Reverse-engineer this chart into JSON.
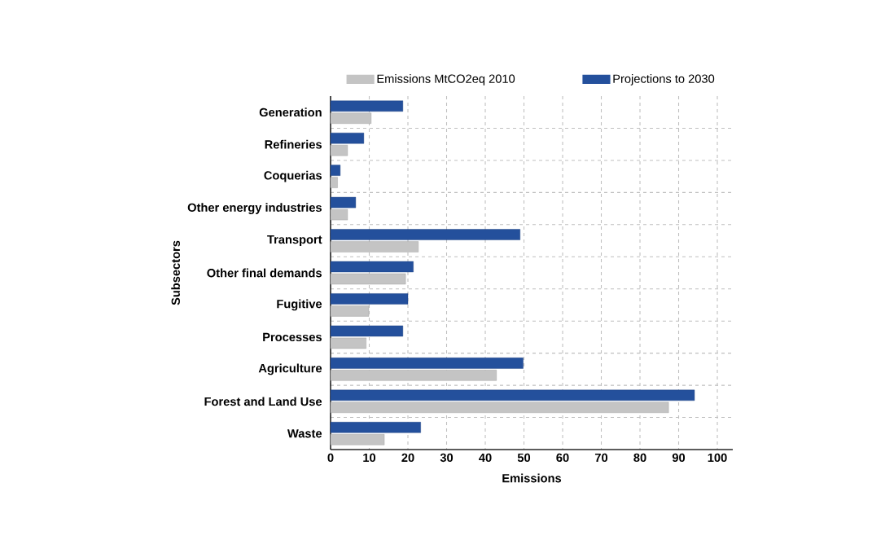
{
  "chart_data": {
    "type": "bar",
    "orientation": "horizontal",
    "xlabel": "Emissions",
    "ylabel": "Subsectors",
    "categories": [
      "Generation",
      "Refineries",
      "Coquerias",
      "Other energy industries",
      "Transport",
      "Other final demands",
      "Fugitive",
      "Processes",
      "Agriculture",
      "Forest and Land Use",
      "Waste"
    ],
    "series": [
      {
        "name": "Emissions MtCO2eq 2010",
        "color": "#c4c4c4",
        "values": [
          10.5,
          4.4,
          1.8,
          4.4,
          22.7,
          19.4,
          9.9,
          9.2,
          42.9,
          87.4,
          13.9
        ]
      },
      {
        "name": "Projections to 2030",
        "color": "#24509c",
        "values": [
          18.7,
          8.6,
          2.5,
          6.5,
          49,
          21.4,
          20,
          18.7,
          49.8,
          94.1,
          23.3
        ]
      }
    ],
    "xlim": [
      0,
      104
    ],
    "xticks": [
      0,
      10,
      20,
      30,
      40,
      50,
      60,
      70,
      80,
      90,
      100
    ],
    "grid": true,
    "legend": "top"
  }
}
